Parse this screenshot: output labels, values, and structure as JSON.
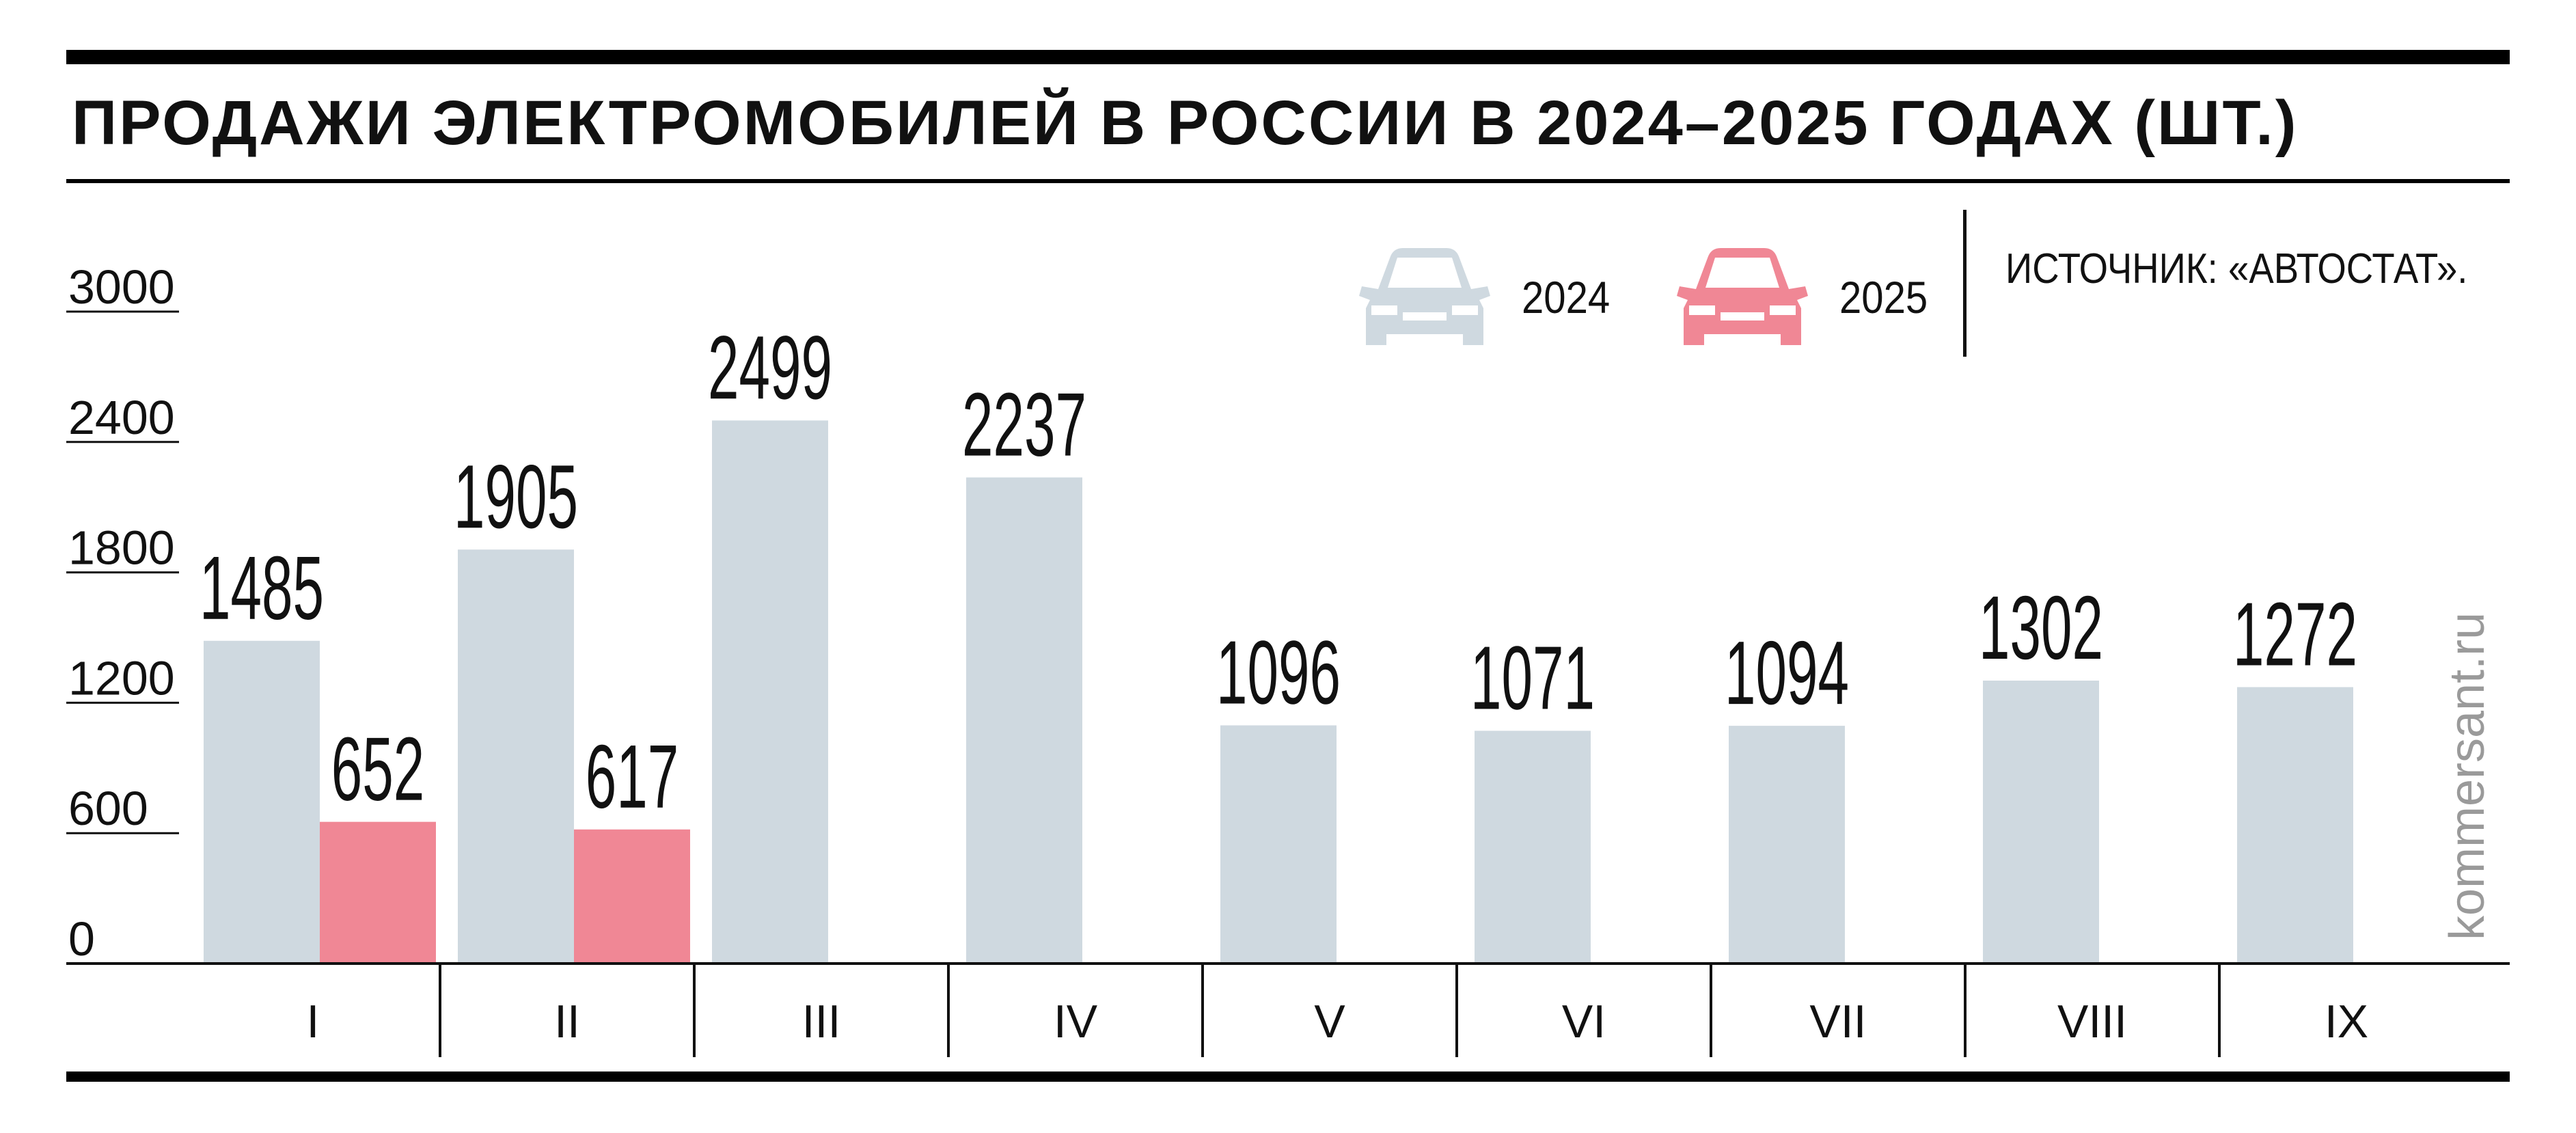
{
  "header": {
    "title": "ПРОДАЖИ ЭЛЕКТРОМОБИЛЕЙ В РОССИИ В 2024–2025 ГОДАХ (ШТ.)",
    "source": "ИСТОЧНИК: «АВТОСТАТ».",
    "watermark": "kommersant.ru"
  },
  "legend": {
    "items": [
      {
        "label": "2024",
        "icon": "car-icon",
        "color": "#cfd9e0"
      },
      {
        "label": "2025",
        "icon": "car-icon",
        "color": "#f08795"
      }
    ]
  },
  "colors": {
    "series_2024": "#cfd9e0",
    "series_2025": "#f08795",
    "axis": "#111111"
  },
  "chart_data": {
    "type": "bar",
    "title": "ПРОДАЖИ ЭЛЕКТРОМОБИЛЕЙ В РОССИИ В 2024–2025 ГОДАХ (ШТ.)",
    "xlabel": "",
    "ylabel": "",
    "categories": [
      "I",
      "II",
      "III",
      "IV",
      "V",
      "VI",
      "VII",
      "VIII",
      "IX"
    ],
    "series": [
      {
        "name": "2024",
        "values": [
          1485,
          1905,
          2499,
          2237,
          1096,
          1071,
          1094,
          1302,
          1272
        ]
      },
      {
        "name": "2025",
        "values": [
          652,
          617,
          null,
          null,
          null,
          null,
          null,
          null,
          null
        ]
      }
    ],
    "yticks": [
      0,
      600,
      1200,
      1800,
      2400,
      3000
    ],
    "ylim": [
      0,
      3000
    ],
    "grid": false,
    "legend_position": "top-right"
  }
}
